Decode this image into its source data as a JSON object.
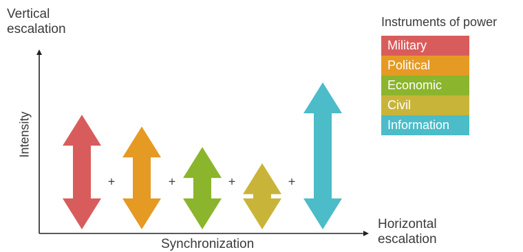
{
  "axes": {
    "y_label": "Vertical\nescalation",
    "x_label": "Horizontal\nescalation",
    "x_inner_label": "Synchronization",
    "y_inner_label": "Intensity"
  },
  "legend": {
    "title": "Instruments of power",
    "items": [
      {
        "label": "Military",
        "color": "#d95c5c"
      },
      {
        "label": "Political",
        "color": "#e59a24"
      },
      {
        "label": "Economic",
        "color": "#8bb52c"
      },
      {
        "label": "Civil",
        "color": "#c9b43a"
      },
      {
        "label": "Information",
        "color": "#4bbcc8"
      }
    ]
  },
  "arrows": [
    {
      "instrument": "Military",
      "color": "#d95c5c",
      "intensity": 0.78
    },
    {
      "instrument": "Political",
      "color": "#e59a24",
      "intensity": 0.7
    },
    {
      "instrument": "Economic",
      "color": "#8bb52c",
      "intensity": 0.56
    },
    {
      "instrument": "Civil",
      "color": "#c9b43a",
      "intensity": 0.45
    },
    {
      "instrument": "Information",
      "color": "#4bbcc8",
      "intensity": 1.0
    }
  ],
  "operators": [
    "+",
    "+",
    "+",
    "+"
  ]
}
